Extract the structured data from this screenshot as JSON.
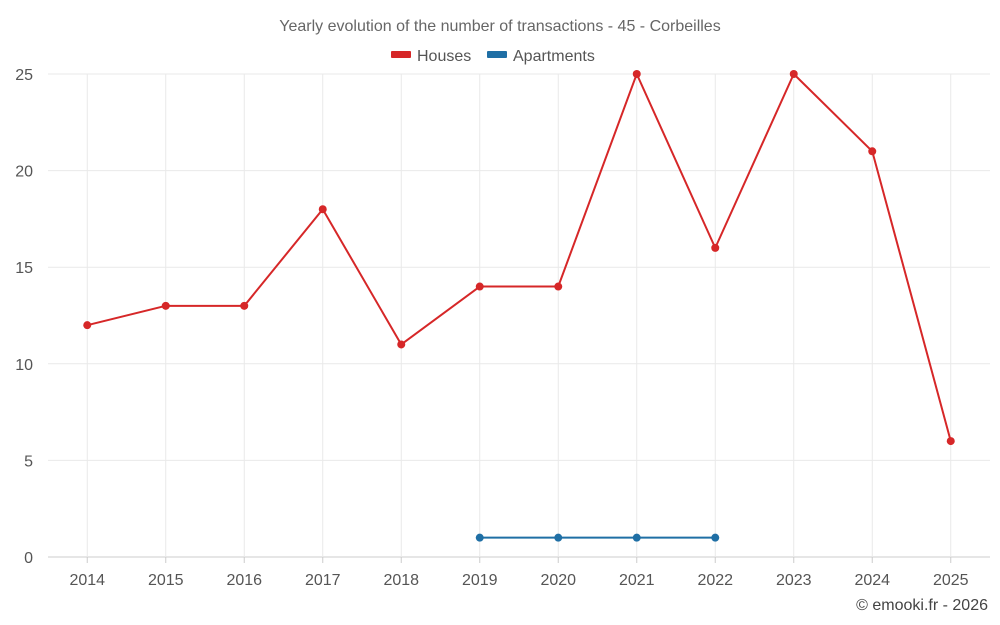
{
  "chart_data": {
    "type": "line",
    "title": "Yearly evolution of the number of transactions - 45 - Corbeilles",
    "categories": [
      "2014",
      "2015",
      "2016",
      "2017",
      "2018",
      "2019",
      "2020",
      "2021",
      "2022",
      "2023",
      "2024",
      "2025"
    ],
    "series": [
      {
        "name": "Houses",
        "color": "#d62728",
        "values": [
          12,
          13,
          13,
          18,
          11,
          14,
          14,
          25,
          16,
          25,
          21,
          6
        ]
      },
      {
        "name": "Apartments",
        "color": "#1f6fa5",
        "values": [
          null,
          null,
          null,
          null,
          null,
          1,
          1,
          1,
          1,
          null,
          null,
          null
        ]
      }
    ],
    "yticks": [
      0,
      5,
      10,
      15,
      20,
      25
    ],
    "ylim": [
      0,
      25
    ],
    "xlabel": "",
    "ylabel": "",
    "grid": true,
    "legend": "top-center"
  },
  "footer": "© emooki.fr - 2026"
}
